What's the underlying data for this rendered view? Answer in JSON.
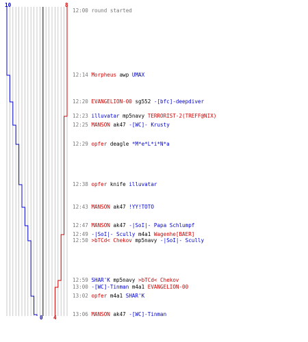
{
  "colors": {
    "red": "#cc0000",
    "blue": "#0000cc",
    "text": "#000000",
    "time": "#777777",
    "grid": "#bbbbbb",
    "axis": "#333333"
  },
  "scores": {
    "blue_start": "10",
    "red_start": "8",
    "blue_end": "0",
    "red_end": "4"
  },
  "events": [
    {
      "time": "12:00",
      "text": "round started"
    },
    {
      "time": "12:14",
      "killer": "Morpheus",
      "kteam": "red",
      "weapon": "awp",
      "victim": "UMAX",
      "vteam": "blue"
    },
    {
      "time": "12:20",
      "killer": "EVANGELION-00",
      "kteam": "red",
      "weapon": "sg552",
      "victim": "-[bfc]-deepdiver",
      "vteam": "blue"
    },
    {
      "time": "12:23",
      "killer": "illuvatar",
      "kteam": "blue",
      "weapon": "mp5navy",
      "victim": "TERRORIST-2(TREFF@NIX)",
      "vteam": "red"
    },
    {
      "time": "12:25",
      "killer": "MANSON",
      "kteam": "red",
      "weapon": "ak47",
      "victim": "-[WC]- Krusty",
      "vteam": "blue"
    },
    {
      "time": "12:29",
      "killer": "opfer",
      "kteam": "red",
      "weapon": "deagle",
      "victim": "*M*e*L*i*N*a",
      "vteam": "blue"
    },
    {
      "time": "12:38",
      "killer": "opfer",
      "kteam": "red",
      "weapon": "knife",
      "victim": "illuvatar",
      "vteam": "blue"
    },
    {
      "time": "12:43",
      "killer": "MANSON",
      "kteam": "red",
      "weapon": "ak47",
      "victim": "!YY!TOTO",
      "vteam": "blue"
    },
    {
      "time": "12:47",
      "killer": "MANSON",
      "kteam": "red",
      "weapon": "ak47",
      "victim": "-|SoI|- Papa Schlumpf",
      "vteam": "blue"
    },
    {
      "time": "12:49",
      "killer": "-|SoI|- Scully",
      "kteam": "blue",
      "weapon": "m4a1",
      "victim": "Wagenhe[BAER]",
      "vteam": "red"
    },
    {
      "time": "12:50",
      "killer": ">bTCd< Chekov",
      "kteam": "red",
      "weapon": "mp5navy",
      "victim": "-|SoI|- Scully",
      "vteam": "blue"
    },
    {
      "time": "12:59",
      "killer": "SHAR'K",
      "kteam": "blue",
      "weapon": "mp5navy",
      "victim": ">bTCd< Chekov",
      "vteam": "red"
    },
    {
      "time": "13:00",
      "killer": "-[WC]-Tinman",
      "kteam": "blue",
      "weapon": "m4a1",
      "victim": "EVANGELION-00",
      "vteam": "red"
    },
    {
      "time": "13:02",
      "killer": "opfer",
      "kteam": "red",
      "weapon": "m4a1",
      "victim": "SHAR'K",
      "vteam": "blue"
    },
    {
      "time": "13:06",
      "killer": "MANSON",
      "kteam": "red",
      "weapon": "ak47",
      "victim": "-[WC]-Tinman",
      "vteam": "blue"
    }
  ]
}
